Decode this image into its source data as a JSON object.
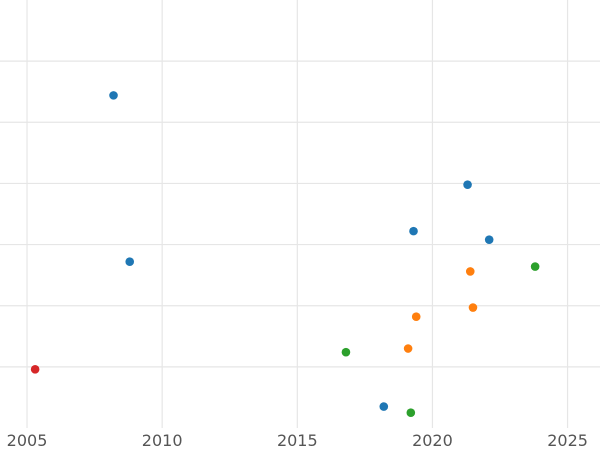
{
  "chart_data": {
    "type": "scatter",
    "title": "",
    "xlabel": "",
    "ylabel": "",
    "xlim": [
      2004.0,
      2026.2
    ],
    "ylim": [
      0,
      7
    ],
    "x_ticks": [
      2005,
      2010,
      2015,
      2020,
      2025
    ],
    "x_tick_labels": [
      "2005",
      "2010",
      "2015",
      "2020",
      "2025"
    ],
    "y_gridlines": [
      1,
      2,
      3,
      4,
      5,
      6
    ],
    "grid": true,
    "legend": "none",
    "series": [
      {
        "color": "#1f77b4",
        "points": [
          {
            "x": 2008.2,
            "y": 5.44
          },
          {
            "x": 2008.8,
            "y": 2.72
          },
          {
            "x": 2019.3,
            "y": 3.22
          },
          {
            "x": 2021.3,
            "y": 3.98
          },
          {
            "x": 2022.1,
            "y": 3.08
          },
          {
            "x": 2018.2,
            "y": 0.35
          }
        ]
      },
      {
        "color": "#ff7f0e",
        "points": [
          {
            "x": 2021.4,
            "y": 2.56
          },
          {
            "x": 2021.5,
            "y": 1.97
          },
          {
            "x": 2019.4,
            "y": 1.82
          },
          {
            "x": 2019.1,
            "y": 1.3
          }
        ]
      },
      {
        "color": "#2ca02c",
        "points": [
          {
            "x": 2023.8,
            "y": 2.64
          },
          {
            "x": 2016.8,
            "y": 1.24
          },
          {
            "x": 2019.2,
            "y": 0.25
          }
        ]
      },
      {
        "color": "#d62728",
        "points": [
          {
            "x": 2005.3,
            "y": 0.96
          }
        ]
      }
    ]
  }
}
